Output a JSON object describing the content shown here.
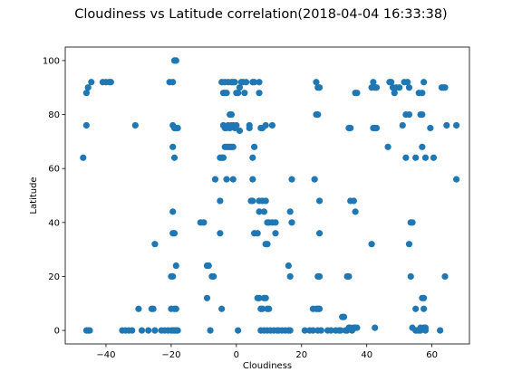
{
  "chart_data": {
    "type": "scatter",
    "title": "Cloudiness vs Latitude correlation(2018-04-04 16:33:38)",
    "xlabel": "Cloudiness",
    "ylabel": "Latitude",
    "xlim": [
      -52.5,
      71.5
    ],
    "ylim": [
      -5,
      105
    ],
    "xticks": [
      -40,
      -20,
      0,
      20,
      40,
      60
    ],
    "yticks": [
      0,
      20,
      40,
      60,
      80,
      100
    ],
    "grid": false,
    "marker_color": "#1f77b4",
    "points": [
      [
        -47,
        64
      ],
      [
        -46,
        88
      ],
      [
        -45.5,
        90
      ],
      [
        -46,
        76
      ],
      [
        -44.5,
        92
      ],
      [
        -46,
        0
      ],
      [
        -45.5,
        0
      ],
      [
        -45,
        0
      ],
      [
        -41,
        92
      ],
      [
        -40,
        92
      ],
      [
        -39,
        92
      ],
      [
        -38.5,
        92
      ],
      [
        -35,
        0
      ],
      [
        -34,
        0
      ],
      [
        -33,
        0
      ],
      [
        -32,
        0
      ],
      [
        -31,
        76
      ],
      [
        -30,
        8
      ],
      [
        -29,
        0
      ],
      [
        -27,
        0
      ],
      [
        -26,
        8
      ],
      [
        -25,
        0
      ],
      [
        -25.5,
        8
      ],
      [
        -25,
        32
      ],
      [
        -23,
        0
      ],
      [
        -22,
        0
      ],
      [
        -21,
        0
      ],
      [
        -20,
        0
      ],
      [
        -19.5,
        0
      ],
      [
        -19,
        0
      ],
      [
        -18.5,
        0
      ],
      [
        -18,
        0
      ],
      [
        -20,
        20
      ],
      [
        -19.5,
        20
      ],
      [
        -20,
        8
      ],
      [
        -19,
        8
      ],
      [
        -18.5,
        8
      ],
      [
        -18.5,
        24
      ],
      [
        -19.5,
        44
      ],
      [
        -19.5,
        36
      ],
      [
        -19,
        36
      ],
      [
        -19.5,
        68
      ],
      [
        -19,
        64
      ],
      [
        -19.5,
        76
      ],
      [
        -19,
        75
      ],
      [
        -18.5,
        75
      ],
      [
        -18,
        75
      ],
      [
        -20.5,
        92
      ],
      [
        -19.5,
        92
      ],
      [
        -19,
        100
      ],
      [
        -18.5,
        100
      ],
      [
        -11,
        40
      ],
      [
        -10,
        40
      ],
      [
        -9,
        24
      ],
      [
        -9,
        12
      ],
      [
        -8.5,
        24
      ],
      [
        -8,
        0
      ],
      [
        -7.5,
        20
      ],
      [
        -7,
        20
      ],
      [
        -6.5,
        56
      ],
      [
        -5,
        64
      ],
      [
        -4.5,
        64
      ],
      [
        -4,
        64
      ],
      [
        -5,
        48
      ],
      [
        -5,
        36
      ],
      [
        -4.5,
        8
      ],
      [
        -4,
        88
      ],
      [
        -3.5,
        88
      ],
      [
        -3,
        88
      ],
      [
        -4.5,
        92
      ],
      [
        -3.5,
        92
      ],
      [
        -2.5,
        92
      ],
      [
        -1.5,
        92
      ],
      [
        -1,
        92
      ],
      [
        -0.5,
        92
      ],
      [
        -4,
        76
      ],
      [
        -3.5,
        75
      ],
      [
        -3,
        75
      ],
      [
        -2.5,
        76
      ],
      [
        -2,
        75
      ],
      [
        -1.5,
        76
      ],
      [
        -1,
        76
      ],
      [
        -0.5,
        75
      ],
      [
        0,
        76
      ],
      [
        -3.5,
        68
      ],
      [
        -3,
        68
      ],
      [
        -2.5,
        68
      ],
      [
        -2,
        68
      ],
      [
        -1.5,
        68
      ],
      [
        -1,
        68
      ],
      [
        -2,
        80
      ],
      [
        -1.5,
        80
      ],
      [
        -3,
        56
      ],
      [
        -1,
        56
      ],
      [
        0.5,
        0
      ],
      [
        0,
        88
      ],
      [
        0.5,
        88
      ],
      [
        1,
        90
      ],
      [
        1.5,
        92
      ],
      [
        2,
        92
      ],
      [
        2.5,
        88
      ],
      [
        3,
        92
      ],
      [
        4,
        76
      ],
      [
        4,
        75
      ],
      [
        1,
        74
      ],
      [
        5,
        92
      ],
      [
        5.5,
        92
      ],
      [
        7,
        92
      ],
      [
        7,
        88
      ],
      [
        5.5,
        68
      ],
      [
        5,
        64
      ],
      [
        5,
        56
      ],
      [
        5,
        48
      ],
      [
        4.5,
        48
      ],
      [
        5.5,
        36
      ],
      [
        6.5,
        36
      ],
      [
        7,
        44
      ],
      [
        7,
        48
      ],
      [
        8,
        48
      ],
      [
        9,
        48
      ],
      [
        9.5,
        40
      ],
      [
        10,
        40
      ],
      [
        11,
        40
      ],
      [
        12,
        40
      ],
      [
        7.5,
        75
      ],
      [
        8,
        75
      ],
      [
        9,
        76
      ],
      [
        11,
        76
      ],
      [
        6.5,
        12
      ],
      [
        7,
        12
      ],
      [
        7.5,
        8
      ],
      [
        8,
        8
      ],
      [
        8.5,
        12
      ],
      [
        9,
        12
      ],
      [
        9.5,
        8
      ],
      [
        10,
        8
      ],
      [
        9,
        32
      ],
      [
        9.5,
        32
      ],
      [
        8.5,
        44
      ],
      [
        12,
        36
      ],
      [
        7.5,
        0
      ],
      [
        8.5,
        0
      ],
      [
        9.5,
        0
      ],
      [
        10.5,
        0
      ],
      [
        11.5,
        0
      ],
      [
        12.5,
        0
      ],
      [
        13,
        0
      ],
      [
        14,
        0
      ],
      [
        15,
        0
      ],
      [
        16,
        0
      ],
      [
        16.5,
        0
      ],
      [
        16,
        24
      ],
      [
        16.5,
        20
      ],
      [
        16.5,
        44
      ],
      [
        17,
        40
      ],
      [
        17,
        56
      ],
      [
        21,
        0
      ],
      [
        22.5,
        0
      ],
      [
        23.5,
        0
      ],
      [
        23.5,
        8
      ],
      [
        24.5,
        8
      ],
      [
        25,
        8
      ],
      [
        25.5,
        8
      ],
      [
        25,
        20
      ],
      [
        25.5,
        20
      ],
      [
        25.5,
        36
      ],
      [
        25.5,
        48
      ],
      [
        24,
        56
      ],
      [
        24.5,
        80
      ],
      [
        25,
        80
      ],
      [
        24.5,
        92
      ],
      [
        25,
        90
      ],
      [
        25.5,
        90
      ],
      [
        25,
        0
      ],
      [
        26,
        0
      ],
      [
        28,
        0
      ],
      [
        29,
        0
      ],
      [
        30.5,
        0
      ],
      [
        31.5,
        0
      ],
      [
        32,
        0
      ],
      [
        32.5,
        5
      ],
      [
        33,
        5
      ],
      [
        33.5,
        0
      ],
      [
        34,
        0
      ],
      [
        34,
        20
      ],
      [
        34.5,
        20
      ],
      [
        34.5,
        1
      ],
      [
        35,
        1
      ],
      [
        35.5,
        0
      ],
      [
        36,
        1
      ],
      [
        36.5,
        1
      ],
      [
        37,
        1
      ],
      [
        34.5,
        75
      ],
      [
        35,
        75
      ],
      [
        35,
        48
      ],
      [
        36,
        48
      ],
      [
        36.5,
        44
      ],
      [
        36.5,
        88
      ],
      [
        37,
        88
      ],
      [
        41.5,
        32
      ],
      [
        41.5,
        90
      ],
      [
        42,
        92
      ],
      [
        42.5,
        90
      ],
      [
        43,
        90
      ],
      [
        42,
        75
      ],
      [
        42.5,
        75
      ],
      [
        43,
        75
      ],
      [
        42.5,
        1
      ],
      [
        46.5,
        68
      ],
      [
        47,
        92
      ],
      [
        47.5,
        92
      ],
      [
        48,
        90
      ],
      [
        48.5,
        88
      ],
      [
        49,
        90
      ],
      [
        50,
        90
      ],
      [
        51,
        76
      ],
      [
        51.5,
        92
      ],
      [
        52,
        80
      ],
      [
        52.5,
        92
      ],
      [
        52,
        64
      ],
      [
        53,
        80
      ],
      [
        53,
        90
      ],
      [
        53,
        32
      ],
      [
        53.5,
        20
      ],
      [
        53.5,
        40
      ],
      [
        54,
        40
      ],
      [
        54,
        1
      ],
      [
        55,
        0
      ],
      [
        55,
        8
      ],
      [
        55.5,
        0
      ],
      [
        56,
        0
      ],
      [
        56.5,
        0
      ],
      [
        56.5,
        1
      ],
      [
        56,
        88
      ],
      [
        57,
        88
      ],
      [
        57.5,
        92
      ],
      [
        56.5,
        80
      ],
      [
        57,
        80
      ],
      [
        57,
        68
      ],
      [
        57,
        12
      ],
      [
        57.5,
        12
      ],
      [
        57.5,
        8
      ],
      [
        57.5,
        1
      ],
      [
        58,
        1
      ],
      [
        58,
        0
      ],
      [
        55,
        64
      ],
      [
        58,
        64
      ],
      [
        59.5,
        75
      ],
      [
        60.5,
        64
      ],
      [
        62.5,
        0
      ],
      [
        63,
        90
      ],
      [
        63.5,
        90
      ],
      [
        64,
        90
      ],
      [
        64,
        20
      ],
      [
        64.5,
        76
      ],
      [
        67.5,
        76
      ],
      [
        67.5,
        56
      ]
    ]
  }
}
